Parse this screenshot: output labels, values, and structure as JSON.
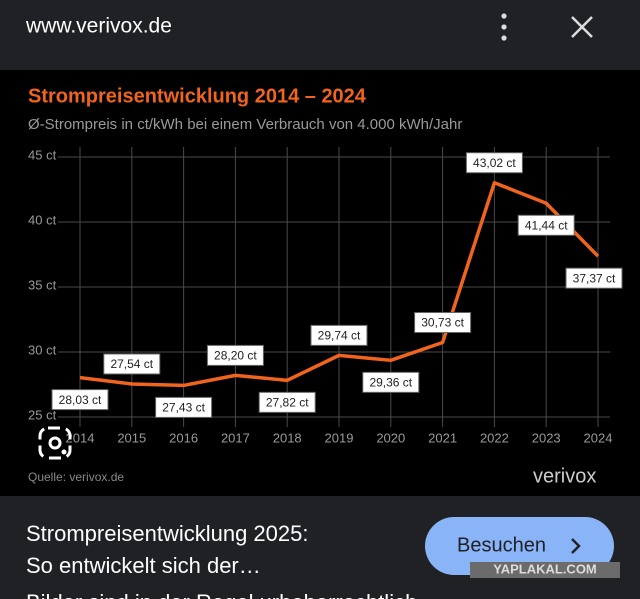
{
  "header": {
    "url": "www.verivox.de"
  },
  "chart_data": {
    "type": "line",
    "title": "Strompreisentwicklung 2014 – 2024",
    "subtitle": "Ø-Strompreis in ct/kWh bei einem Verbrauch von 4.000 kWh/Jahr",
    "categories": [
      "2014",
      "2015",
      "2016",
      "2017",
      "2018",
      "2019",
      "2020",
      "2021",
      "2022",
      "2023",
      "2024"
    ],
    "values": [
      28.03,
      27.54,
      27.43,
      28.2,
      27.82,
      29.74,
      29.36,
      30.73,
      43.02,
      41.44,
      37.37
    ],
    "value_labels": [
      "28,03 ct",
      "27,54 ct",
      "27,43 ct",
      "28,20 ct",
      "27,82 ct",
      "29,74 ct",
      "29,36 ct",
      "30,73 ct",
      "43,02 ct",
      "41,44 ct",
      "37,37 ct"
    ],
    "color": "#f0641e",
    "ylim": [
      25,
      45
    ],
    "yticks": [
      {
        "value": 25,
        "label": "25 ct"
      },
      {
        "value": 30,
        "label": "30 ct"
      },
      {
        "value": 35,
        "label": "35 ct"
      },
      {
        "value": 40,
        "label": "40 ct"
      },
      {
        "value": 45,
        "label": "45 ct"
      }
    ],
    "grid": true,
    "source": "Quelle: verivox.de",
    "logo": "verivox"
  },
  "caption": {
    "line1": "Strompreisentwicklung 2025:",
    "line2": "So entwickelt sich der…"
  },
  "button": "Besuchen",
  "watermark": "YAPLAKAL.COM",
  "footer": "Bilder sind in der Regel urheberrechtlich"
}
